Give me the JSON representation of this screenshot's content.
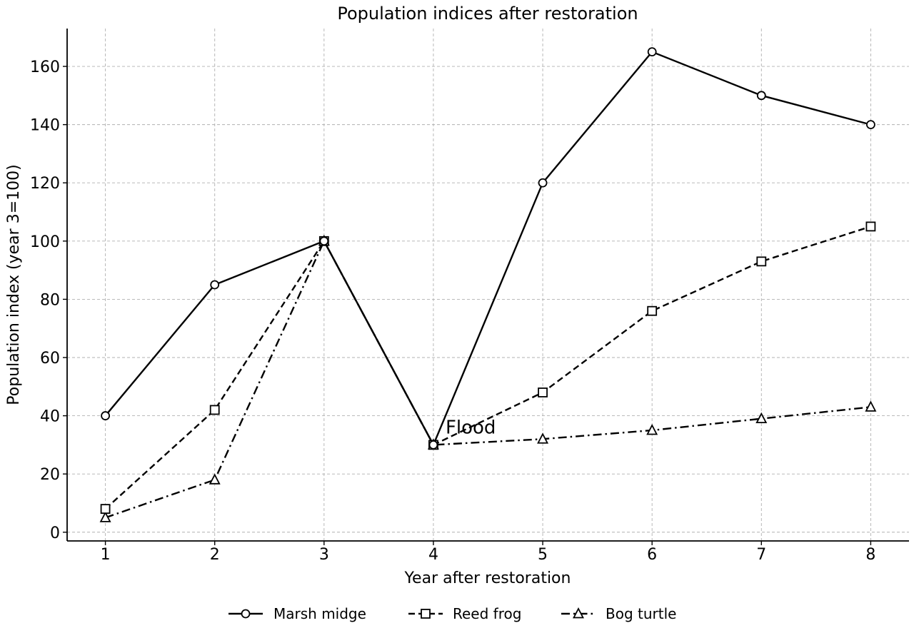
{
  "chart_data": {
    "type": "line",
    "title": "Population indices after restoration",
    "xlabel": "Year after restoration",
    "ylabel": "Population index (year 3=100)",
    "x": [
      1,
      2,
      3,
      4,
      5,
      6,
      7,
      8
    ],
    "xlim": [
      0.65,
      8.35
    ],
    "ylim": [
      -3,
      173
    ],
    "yticks": [
      0,
      20,
      40,
      60,
      80,
      100,
      120,
      140,
      160
    ],
    "grid": true,
    "legend_position": "bottom-center",
    "series": [
      {
        "name": "Marsh midge",
        "values": [
          40,
          85,
          100,
          30,
          120,
          165,
          150,
          140
        ],
        "marker": "circle",
        "dash": "solid"
      },
      {
        "name": "Reed frog",
        "values": [
          8,
          42,
          100,
          30,
          48,
          76,
          93,
          105
        ],
        "marker": "square",
        "dash": "dashed"
      },
      {
        "name": "Bog turtle",
        "values": [
          5,
          18,
          100,
          30,
          32,
          35,
          39,
          43
        ],
        "marker": "triangle",
        "dash": "dashdot"
      }
    ],
    "annotations": [
      {
        "text": "Flood",
        "x": 4,
        "y": 30
      }
    ]
  }
}
